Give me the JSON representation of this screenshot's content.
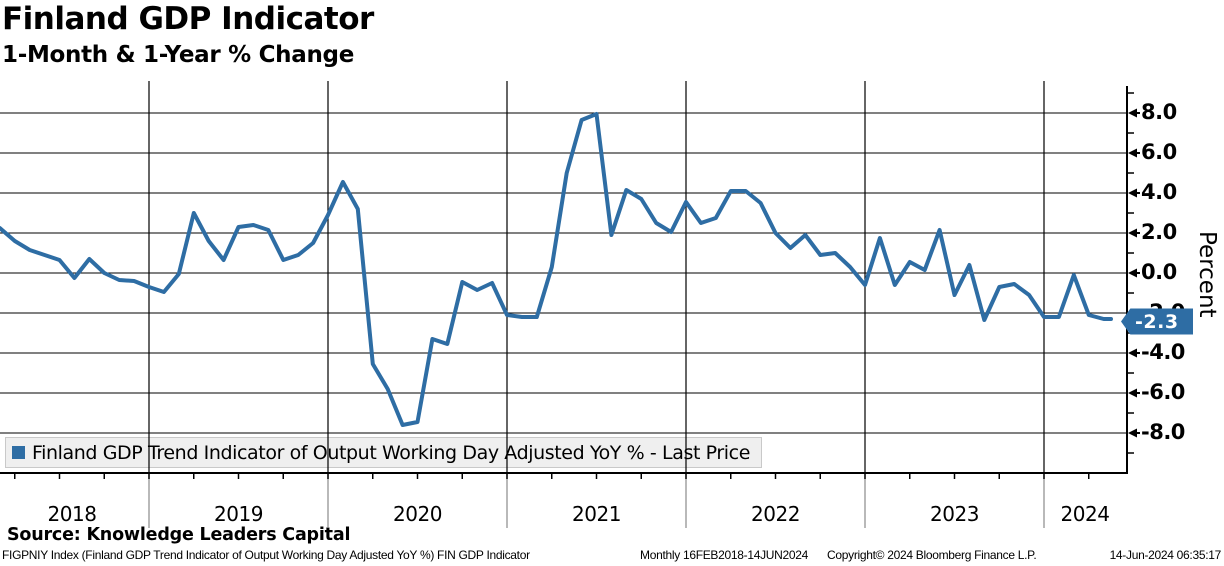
{
  "header": {
    "title": "Finland GDP Indicator",
    "subtitle": "1-Month & 1-Year % Change"
  },
  "chart_data": {
    "type": "line",
    "title": "Finland GDP Indicator",
    "subtitle": "1-Month & 1-Year % Change",
    "ylabel": "Percent",
    "xlabel": "",
    "grid": true,
    "legend_position": "bottom-left",
    "x_year_labels": [
      "2018",
      "2019",
      "2020",
      "2021",
      "2022",
      "2023",
      "2024"
    ],
    "y_tick_labels": [
      "8.0",
      "6.0",
      "4.0",
      "2.0",
      "0.0",
      "-2.0",
      "-4.0",
      "-6.0",
      "-8.0"
    ],
    "y_major_values": [
      8,
      6,
      4,
      2,
      0,
      -2,
      -4,
      -6,
      -8
    ],
    "y_minor_values": [
      9,
      7,
      5,
      3,
      1,
      -1,
      -3,
      -5,
      -7,
      -9
    ],
    "ylim": [
      -10,
      9.6
    ],
    "x_range": "16FEB2018-14JUN2024",
    "frequency": "monthly",
    "last_price": -2.3,
    "last_price_label": "-2.3",
    "line_color": "#2e6da4",
    "series": [
      {
        "name": "Finland GDP Trend Indicator of Output Working Day Adjusted YoY % - Last Price",
        "color": "#2e6da4",
        "start_month": "2018-02",
        "values": [
          2.6,
          2.25,
          1.6,
          1.15,
          0.9,
          0.65,
          -0.25,
          0.7,
          0.0,
          -0.35,
          -0.4,
          -0.7,
          -0.95,
          -0.05,
          3.0,
          1.6,
          0.65,
          2.3,
          2.4,
          2.15,
          0.65,
          0.9,
          1.5,
          2.9,
          4.55,
          3.2,
          -4.55,
          -5.8,
          -7.6,
          -7.45,
          -3.3,
          -3.55,
          -0.45,
          -0.85,
          -0.5,
          -2.1,
          -2.2,
          -2.2,
          0.3,
          5.0,
          7.65,
          7.95,
          1.9,
          4.15,
          3.7,
          2.5,
          2.05,
          3.55,
          2.5,
          2.75,
          4.1,
          4.1,
          3.5,
          2.0,
          1.25,
          1.9,
          0.9,
          1.0,
          0.3,
          -0.6,
          1.75,
          -0.6,
          0.55,
          0.15,
          2.15,
          -1.1,
          0.4,
          -2.35,
          -0.7,
          -0.55,
          -1.1,
          -2.2,
          -2.2,
          -0.1,
          -2.1,
          -2.3,
          -2.3
        ]
      }
    ]
  },
  "footer": {
    "source": "Source: Knowledge Leaders Capital",
    "description": "FIGPNIY Index (Finland GDP Trend Indicator of Output Working Day Adjusted YoY %) FIN GDP Indicator",
    "frequency": "Monthly 16FEB2018-14JUN2024",
    "copyright": "Copyright© 2024 Bloomberg Finance L.P.",
    "timestamp": "14-Jun-2024 06:35:17"
  }
}
